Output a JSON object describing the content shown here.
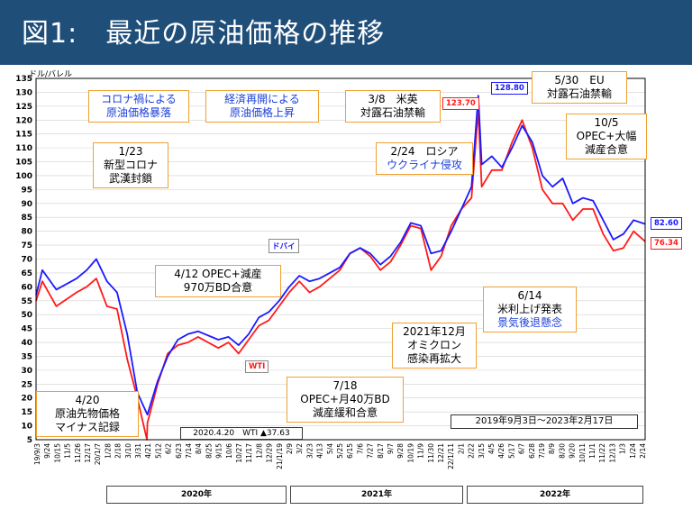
{
  "title": "図1:　最近の原油価格の推移",
  "unit_label": "ドル/バレル",
  "period_label": "2019年9月3日〜2023年2月17日",
  "min_note": "2020.4.20　WTI ▲37.63",
  "colors": {
    "dubai": "#1a1aff",
    "wti": "#ff1a1a",
    "annotation_border": "#f0a030",
    "title_bg": "#1f4e79"
  },
  "annotations": [
    {
      "id": "covid-crash",
      "lines": [
        "コロナ禍による",
        "原油価格暴落"
      ],
      "color": "blue"
    },
    {
      "id": "reopening",
      "lines": [
        "経済再開による",
        "原油価格上昇"
      ],
      "color": "blue"
    },
    {
      "id": "us-uk-ban",
      "lines": [
        "3/8　米英",
        "対露石油禁輸"
      ],
      "color": "black"
    },
    {
      "id": "eu-ban",
      "lines": [
        "5/30　EU",
        "対露石油禁輸"
      ],
      "color": "black"
    },
    {
      "id": "wuhan",
      "lines": [
        "1/23",
        "新型コロナ",
        "武漢封鎖"
      ],
      "color": "black"
    },
    {
      "id": "ukraine",
      "lines": [
        "2/24　ロシア",
        "ウクライナ侵攻"
      ],
      "color": "mixed"
    },
    {
      "id": "opec-cut-oct",
      "lines": [
        "10/5",
        "OPEC+大幅",
        "減産合意"
      ],
      "color": "black"
    },
    {
      "id": "opec-apr",
      "lines": [
        "4/12 OPEC+減産",
        "970万BD合意"
      ],
      "color": "black"
    },
    {
      "id": "fed-hike",
      "lines": [
        "6/14",
        "米利上げ発表",
        "景気後退懸念"
      ],
      "color": "mixed"
    },
    {
      "id": "omicron",
      "lines": [
        "2021年12月",
        "オミクロン",
        "感染再拡大"
      ],
      "color": "black"
    },
    {
      "id": "opec-jul",
      "lines": [
        "7/18",
        "OPEC+月40万BD",
        "減産緩和合意"
      ],
      "color": "black"
    },
    {
      "id": "wti-negative",
      "lines": [
        "4/20",
        "原油先物価格",
        "マイナス記録"
      ],
      "color": "black"
    }
  ],
  "chart_data": {
    "type": "line",
    "title": "",
    "xlabel": "",
    "ylabel": "ドル/バレル",
    "ylim": [
      5,
      135
    ],
    "y_ticks": [
      5,
      10,
      15,
      20,
      25,
      30,
      35,
      40,
      45,
      50,
      55,
      60,
      65,
      70,
      75,
      80,
      85,
      90,
      95,
      100,
      105,
      110,
      115,
      120,
      125,
      130,
      135
    ],
    "x_range": [
      "2019-09-03",
      "2023-02-17"
    ],
    "x_tick_labels": [
      "19/9/3",
      "9/24",
      "10/15",
      "11/5",
      "11/26",
      "12/17",
      "20/1/7",
      "1/28",
      "2/18",
      "3/10",
      "3/31",
      "4/21",
      "5/12",
      "6/2",
      "6/23",
      "7/14",
      "8/4",
      "8/25",
      "9/15",
      "10/6",
      "10/27",
      "11/17",
      "12/8",
      "12/29",
      "21/1/19",
      "2/9",
      "3/2",
      "3/23",
      "4/13",
      "5/4",
      "5/25",
      "6/15",
      "7/6",
      "7/27",
      "8/17",
      "9/7",
      "9/28",
      "10/19",
      "11/9",
      "11/30",
      "12/21",
      "22/1/11",
      "2/1",
      "2/22",
      "3/15",
      "4/5",
      "4/26",
      "5/17",
      "6/7",
      "6/28",
      "7/19",
      "8/9",
      "8/30",
      "9/20",
      "10/11",
      "11/1",
      "11/22",
      "12/13",
      "1/3",
      "1/24",
      "2/14"
    ],
    "year_labels": [
      "2020年",
      "2021年",
      "2022年"
    ],
    "grid": true,
    "series": [
      {
        "name": "ドバイ",
        "end_value": "82.60",
        "peak_value": "128.80",
        "color": "#1a1aff",
        "points": [
          [
            "2019-09-03",
            57
          ],
          [
            "2019-09-16",
            66
          ],
          [
            "2019-10-15",
            59
          ],
          [
            "2019-11-26",
            63
          ],
          [
            "2019-12-17",
            66
          ],
          [
            "2020-01-06",
            70
          ],
          [
            "2020-01-28",
            62
          ],
          [
            "2020-02-18",
            58
          ],
          [
            "2020-03-10",
            43
          ],
          [
            "2020-03-31",
            22
          ],
          [
            "2020-04-21",
            14
          ],
          [
            "2020-05-12",
            26
          ],
          [
            "2020-06-02",
            35
          ],
          [
            "2020-06-23",
            41
          ],
          [
            "2020-07-14",
            43
          ],
          [
            "2020-08-04",
            44
          ],
          [
            "2020-09-15",
            41
          ],
          [
            "2020-10-06",
            42
          ],
          [
            "2020-10-27",
            39
          ],
          [
            "2020-11-17",
            43
          ],
          [
            "2020-12-08",
            49
          ],
          [
            "2020-12-29",
            51
          ],
          [
            "2021-01-19",
            55
          ],
          [
            "2021-02-09",
            60
          ],
          [
            "2021-03-02",
            64
          ],
          [
            "2021-03-23",
            62
          ],
          [
            "2021-04-13",
            63
          ],
          [
            "2021-05-25",
            67
          ],
          [
            "2021-06-15",
            72
          ],
          [
            "2021-07-06",
            74
          ],
          [
            "2021-07-27",
            72
          ],
          [
            "2021-08-17",
            68
          ],
          [
            "2021-09-07",
            71
          ],
          [
            "2021-09-28",
            76
          ],
          [
            "2021-10-19",
            83
          ],
          [
            "2021-11-09",
            82
          ],
          [
            "2021-11-30",
            72
          ],
          [
            "2021-12-21",
            73
          ],
          [
            "2022-01-11",
            80
          ],
          [
            "2022-02-01",
            88
          ],
          [
            "2022-02-22",
            96
          ],
          [
            "2022-03-08",
            128.8
          ],
          [
            "2022-03-15",
            104
          ],
          [
            "2022-04-05",
            107
          ],
          [
            "2022-04-26",
            103
          ],
          [
            "2022-05-17",
            110
          ],
          [
            "2022-06-07",
            118
          ],
          [
            "2022-06-28",
            112
          ],
          [
            "2022-07-19",
            100
          ],
          [
            "2022-08-09",
            96
          ],
          [
            "2022-08-30",
            99
          ],
          [
            "2022-09-20",
            90
          ],
          [
            "2022-10-11",
            92
          ],
          [
            "2022-11-01",
            91
          ],
          [
            "2022-11-22",
            84
          ],
          [
            "2022-12-13",
            77
          ],
          [
            "2023-01-03",
            79
          ],
          [
            "2023-01-24",
            84
          ],
          [
            "2023-02-17",
            82.6
          ]
        ]
      },
      {
        "name": "WTI",
        "end_value": "76.34",
        "peak_value": "123.70",
        "color": "#ff1a1a",
        "points": [
          [
            "2019-09-03",
            55
          ],
          [
            "2019-09-16",
            62
          ],
          [
            "2019-10-15",
            53
          ],
          [
            "2019-11-26",
            58
          ],
          [
            "2019-12-17",
            60
          ],
          [
            "2020-01-06",
            63
          ],
          [
            "2020-01-28",
            53
          ],
          [
            "2020-02-18",
            52
          ],
          [
            "2020-03-10",
            34
          ],
          [
            "2020-03-31",
            20
          ],
          [
            "2020-04-20",
            5
          ],
          [
            "2020-04-21",
            11
          ],
          [
            "2020-05-12",
            25
          ],
          [
            "2020-06-02",
            36
          ],
          [
            "2020-06-23",
            39
          ],
          [
            "2020-07-14",
            40
          ],
          [
            "2020-08-04",
            42
          ],
          [
            "2020-09-15",
            38
          ],
          [
            "2020-10-06",
            40
          ],
          [
            "2020-10-27",
            36
          ],
          [
            "2020-11-17",
            41
          ],
          [
            "2020-12-08",
            46
          ],
          [
            "2020-12-29",
            48
          ],
          [
            "2021-01-19",
            53
          ],
          [
            "2021-02-09",
            58
          ],
          [
            "2021-03-02",
            62
          ],
          [
            "2021-03-23",
            58
          ],
          [
            "2021-04-13",
            60
          ],
          [
            "2021-05-25",
            66
          ],
          [
            "2021-06-15",
            72
          ],
          [
            "2021-07-06",
            74
          ],
          [
            "2021-07-27",
            71
          ],
          [
            "2021-08-17",
            66
          ],
          [
            "2021-09-07",
            69
          ],
          [
            "2021-09-28",
            75
          ],
          [
            "2021-10-19",
            82
          ],
          [
            "2021-11-09",
            81
          ],
          [
            "2021-11-30",
            66
          ],
          [
            "2021-12-21",
            71
          ],
          [
            "2022-01-11",
            82
          ],
          [
            "2022-02-01",
            88
          ],
          [
            "2022-02-22",
            92
          ],
          [
            "2022-03-08",
            123.7
          ],
          [
            "2022-03-15",
            96
          ],
          [
            "2022-04-05",
            102
          ],
          [
            "2022-04-26",
            102
          ],
          [
            "2022-05-17",
            112
          ],
          [
            "2022-06-07",
            120
          ],
          [
            "2022-06-28",
            110
          ],
          [
            "2022-07-19",
            95
          ],
          [
            "2022-08-09",
            90
          ],
          [
            "2022-08-30",
            90
          ],
          [
            "2022-09-20",
            84
          ],
          [
            "2022-10-11",
            88
          ],
          [
            "2022-11-01",
            88
          ],
          [
            "2022-11-22",
            79
          ],
          [
            "2022-12-13",
            73
          ],
          [
            "2023-01-03",
            74
          ],
          [
            "2023-01-24",
            80
          ],
          [
            "2023-02-17",
            76.34
          ]
        ]
      }
    ]
  }
}
